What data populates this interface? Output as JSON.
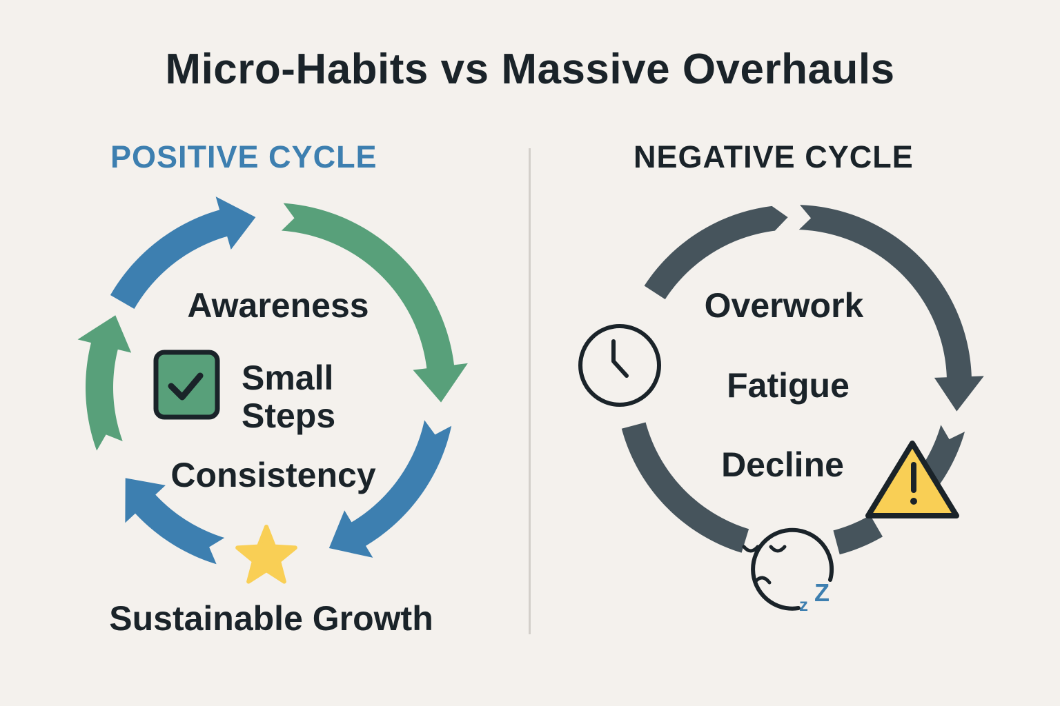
{
  "title": "Micro-Habits vs Massive Overhauls",
  "positive": {
    "heading": "POSITIVE CYCLE",
    "labels": {
      "awareness": "Awareness",
      "small": "Small",
      "steps": "Steps",
      "consistency": "Consistency",
      "growth": "Sustainable Growth"
    },
    "icons": [
      "checkbox-icon",
      "star-icon"
    ]
  },
  "negative": {
    "heading": "NEGATIVE CYCLE",
    "labels": {
      "overwork": "Overwork",
      "fatigue": "Fatigue",
      "decline": "Decline"
    },
    "icons": [
      "clock-icon",
      "warning-icon",
      "sleepy-face-icon"
    ]
  },
  "colors": {
    "background": "#f4f1ed",
    "blue": "#3d7fb0",
    "green": "#58a07a",
    "dark": "#46545c",
    "yellow": "#f9cf55",
    "text": "#1a2329"
  }
}
